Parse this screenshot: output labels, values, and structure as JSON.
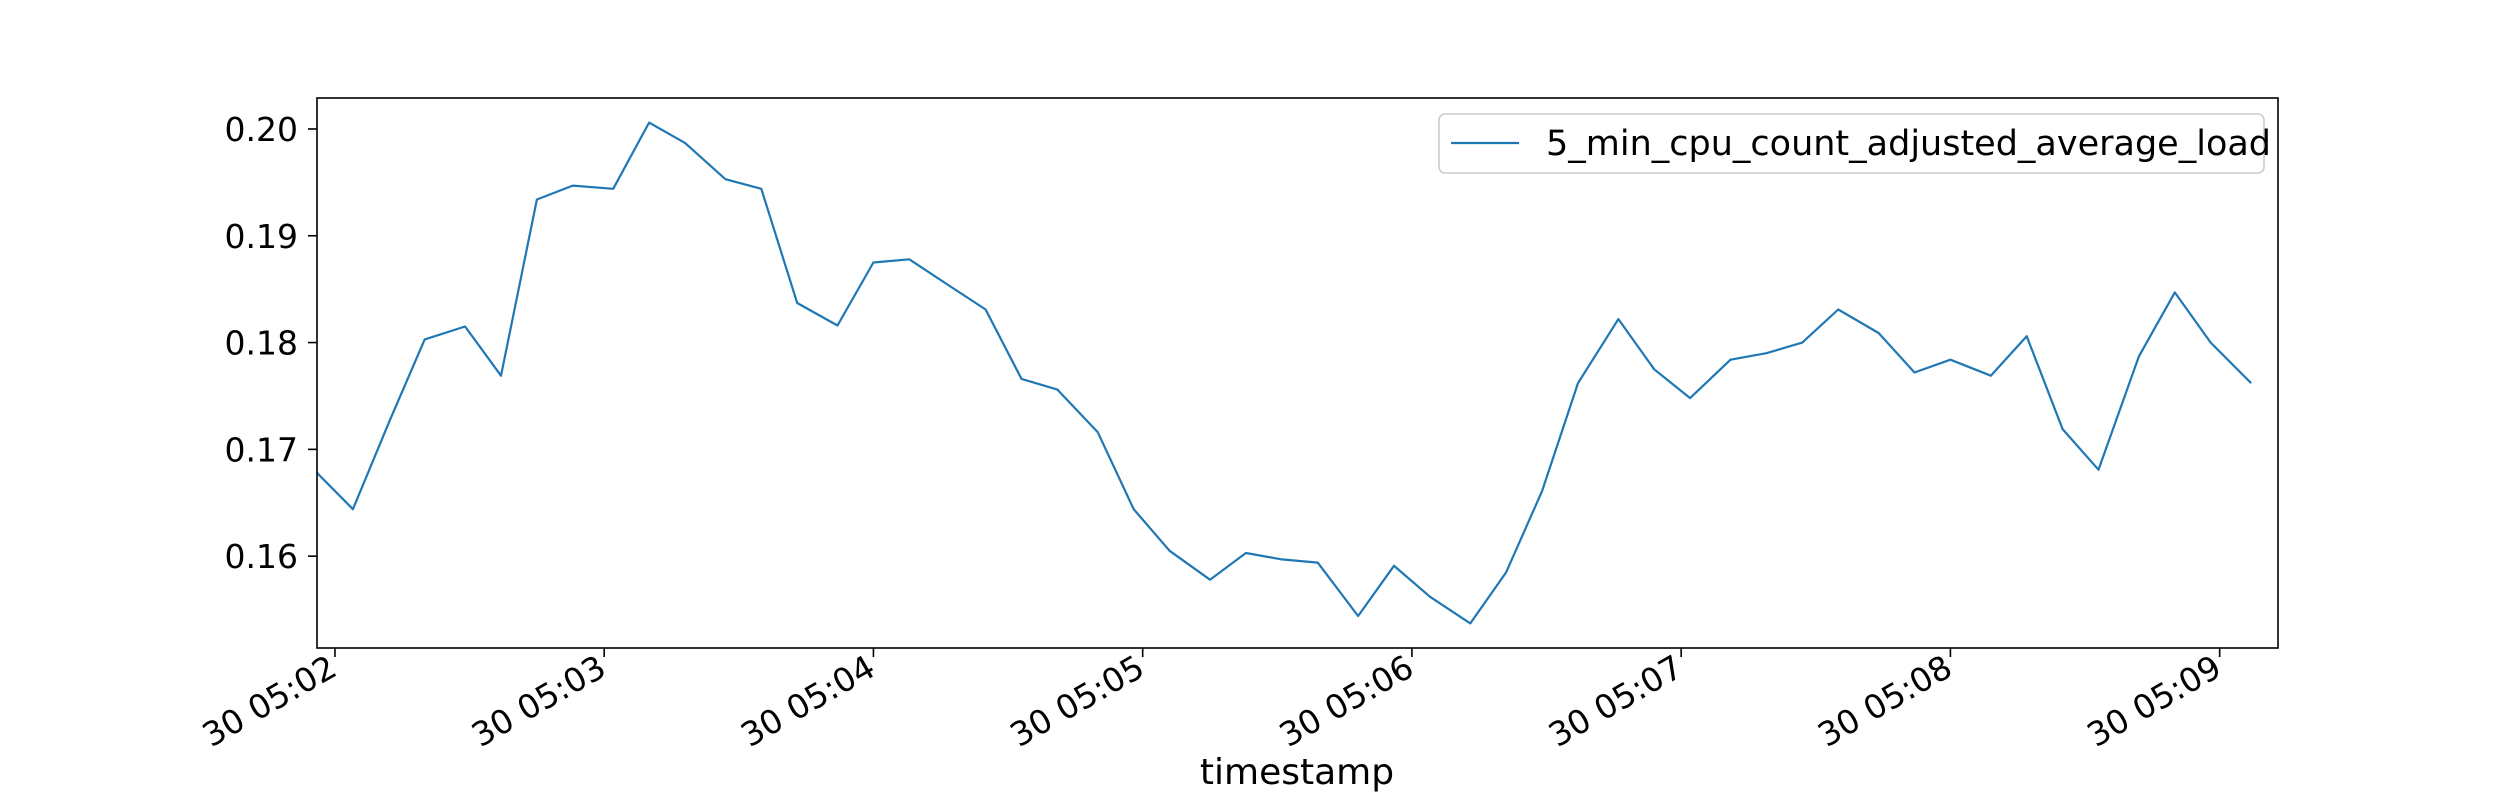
{
  "chart_data": {
    "type": "line",
    "xlabel": "timestamp",
    "ylabel": "",
    "title": "",
    "grid": false,
    "legend_position": "top-right",
    "x_tick_labels": [
      "30 05:02",
      "30 05:03",
      "30 05:04",
      "30 05:05",
      "30 05:06",
      "30 05:07",
      "30 05:08",
      "30 05:09"
    ],
    "x_tick_minutes": [
      "05:02",
      "05:03",
      "05:04",
      "05:05",
      "05:06",
      "05:07",
      "05:08",
      "05:09"
    ],
    "y_ticks": [
      "0.16",
      "0.17",
      "0.18",
      "0.19",
      "0.20"
    ],
    "ylim": [
      0.1514,
      0.2029
    ],
    "xlim": [
      "05:01:56",
      "05:09:13"
    ],
    "series": [
      {
        "name": "5_min_cpu_count_adjusted_average_load",
        "color": "#1f77b4",
        "points": [
          [
            "05:01:56",
            0.1678
          ],
          [
            "05:02:04",
            0.1644
          ],
          [
            "05:02:12",
            0.1725
          ],
          [
            "05:02:20",
            0.1803
          ],
          [
            "05:02:29",
            0.1815
          ],
          [
            "05:02:37",
            0.1769
          ],
          [
            "05:02:45",
            0.1934
          ],
          [
            "05:02:53",
            0.1947
          ],
          [
            "05:03:02",
            0.1944
          ],
          [
            "05:03:10",
            0.2006
          ],
          [
            "05:03:18",
            0.1987
          ],
          [
            "05:03:27",
            0.1953
          ],
          [
            "05:03:35",
            0.1944
          ],
          [
            "05:03:43",
            0.1837
          ],
          [
            "05:03:52",
            0.1816
          ],
          [
            "05:04:00",
            0.1875
          ],
          [
            "05:04:08",
            0.1878
          ],
          [
            "05:04:17",
            0.1853
          ],
          [
            "05:04:25",
            0.1831
          ],
          [
            "05:04:33",
            0.1766
          ],
          [
            "05:04:41",
            0.1756
          ],
          [
            "05:04:50",
            0.1716
          ],
          [
            "05:04:58",
            0.1644
          ],
          [
            "05:05:06",
            0.1605
          ],
          [
            "05:05:15",
            0.1578
          ],
          [
            "05:05:23",
            0.1603
          ],
          [
            "05:05:31",
            0.1597
          ],
          [
            "05:05:39",
            0.1594
          ],
          [
            "05:05:48",
            0.1544
          ],
          [
            "05:05:56",
            0.1591
          ],
          [
            "05:06:04",
            0.1562
          ],
          [
            "05:06:13",
            0.1537
          ],
          [
            "05:06:21",
            0.1585
          ],
          [
            "05:06:29",
            0.1661
          ],
          [
            "05:06:37",
            0.1762
          ],
          [
            "05:06:46",
            0.1822
          ],
          [
            "05:06:54",
            0.1775
          ],
          [
            "05:07:02",
            0.1748
          ],
          [
            "05:07:11",
            0.1784
          ],
          [
            "05:07:19",
            0.179
          ],
          [
            "05:07:27",
            0.18
          ],
          [
            "05:07:35",
            0.1831
          ],
          [
            "05:07:44",
            0.1809
          ],
          [
            "05:07:52",
            0.1772
          ],
          [
            "05:08:00",
            0.1784
          ],
          [
            "05:08:09",
            0.1769
          ],
          [
            "05:08:17",
            0.1806
          ],
          [
            "05:08:25",
            0.1719
          ],
          [
            "05:08:33",
            0.1681
          ],
          [
            "05:08:42",
            0.1787
          ],
          [
            "05:08:50",
            0.1847
          ],
          [
            "05:08:58",
            0.18
          ],
          [
            "05:09:07",
            0.1762
          ]
        ]
      }
    ]
  }
}
